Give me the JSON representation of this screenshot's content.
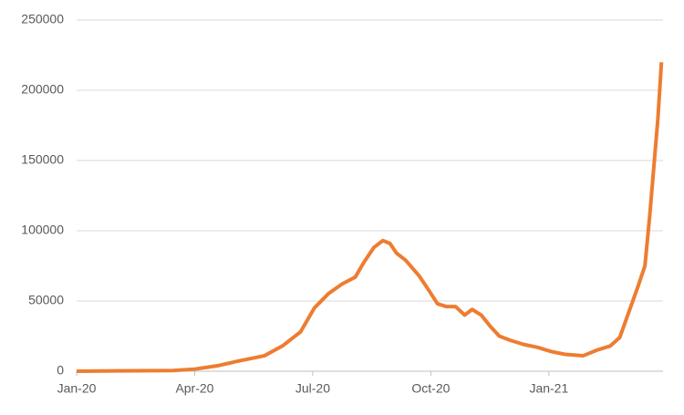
{
  "chart_data": {
    "type": "line",
    "x": [
      0,
      2.45,
      3,
      3.6,
      4.07,
      4.77,
      5.23,
      5.69,
      6.04,
      6.39,
      6.74,
      7.08,
      7.31,
      7.55,
      7.78,
      7.96,
      8.13,
      8.36,
      8.7,
      8.94,
      9.17,
      9.4,
      9.63,
      9.86,
      10.05,
      10.28,
      10.51,
      10.74,
      11.02,
      11.37,
      11.71,
      12.06,
      12.41,
      12.87,
      13.22,
      13.56,
      13.8,
      14.03,
      14.26,
      14.44,
      14.56,
      14.68,
      14.77,
      14.86
    ],
    "series": [
      {
        "color": "#ed7d31",
        "values": [
          0,
          500,
          1500,
          4000,
          7000,
          11000,
          18000,
          28000,
          45000,
          55000,
          62000,
          67000,
          78000,
          88000,
          93000,
          91000,
          84000,
          79000,
          68000,
          58000,
          48000,
          46000,
          46000,
          40000,
          44000,
          40000,
          32000,
          25000,
          22000,
          19000,
          17000,
          14000,
          12000,
          11000,
          15000,
          18000,
          24000,
          42000,
          60000,
          75000,
          110000,
          150000,
          180000,
          220000
        ]
      }
    ],
    "xlim": [
      0,
      14.9
    ],
    "xticks": [
      {
        "value": 0,
        "label": "Jan-20"
      },
      {
        "value": 3,
        "label": "Apr-20"
      },
      {
        "value": 6,
        "label": "Jul-20"
      },
      {
        "value": 9,
        "label": "Oct-20"
      },
      {
        "value": 12,
        "label": "Jan-21"
      }
    ],
    "ylim": [
      0,
      250000
    ],
    "yticks": [
      0,
      50000,
      100000,
      150000,
      200000,
      250000
    ],
    "grid": true
  }
}
